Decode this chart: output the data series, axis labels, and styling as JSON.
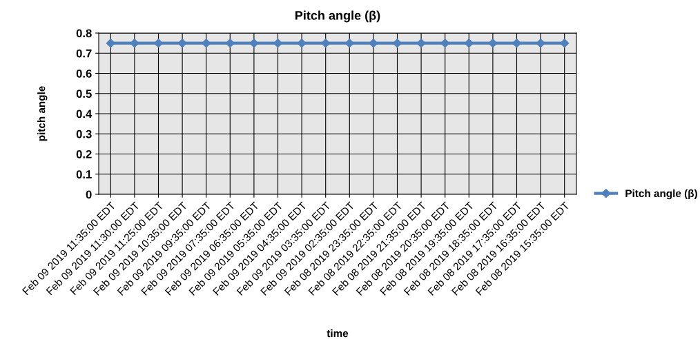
{
  "chart_data": {
    "type": "line",
    "title": "Pitch angle (β)",
    "xlabel": "time",
    "ylabel": "pitch angle",
    "categories": [
      "Feb 09 2019 11:35:00 EDT",
      "Feb 09 2019 11:30:00 EDT",
      "Feb 09 2019 11:25:00 EDT",
      "Feb 09 2019 10:35:00 EDT",
      "Feb 09 2019 09:35:00 EDT",
      "Feb 09 2019 07:35:00 EDT",
      "Feb 09 2019 06:35:00 EDT",
      "Feb 09 2019 05:35:00 EDT",
      "Feb 09 2019 04:35:00 EDT",
      "Feb 09 2019 03:35:00 EDT",
      "Feb 09 2019 02:35:00 EDT",
      "Feb 08 2019 23:35:00 EDT",
      "Feb 08 2019 22:35:00 EDT",
      "Feb 08 2019 21:35:00 EDT",
      "Feb 08 2019 20:35:00 EDT",
      "Feb 08 2019 19:35:00 EDT",
      "Feb 08 2019 18:35:00 EDT",
      "Feb 08 2019 17:35:00 EDT",
      "Feb 08 2019 16:35:00 EDT",
      "Feb 08 2019 15:35:00 EDT"
    ],
    "series": [
      {
        "name": "Pitch angle (β)",
        "color": "#4f81bd",
        "values": [
          0.75,
          0.75,
          0.75,
          0.75,
          0.75,
          0.75,
          0.75,
          0.75,
          0.75,
          0.75,
          0.75,
          0.75,
          0.75,
          0.75,
          0.75,
          0.75,
          0.75,
          0.75,
          0.75,
          0.75
        ]
      }
    ],
    "ylim": [
      0,
      0.8
    ],
    "yticks": [
      0,
      0.1,
      0.2,
      0.3,
      0.4,
      0.5,
      0.6,
      0.7,
      0.8
    ],
    "grid": true,
    "legend": "right",
    "marker": "diamond",
    "line_style": "solid"
  }
}
